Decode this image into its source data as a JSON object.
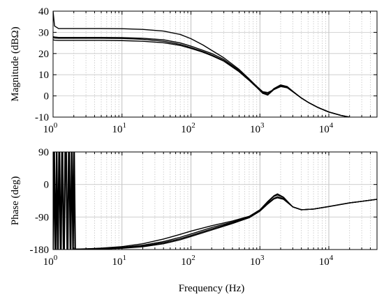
{
  "chart_data": [
    {
      "type": "line",
      "panel": "magnitude",
      "xlabel": "",
      "ylabel": "Magnitude (dBΩ)",
      "xscale": "log",
      "xlim": [
        1,
        50000
      ],
      "ylim": [
        -10,
        40
      ],
      "yticks": [
        -10,
        0,
        10,
        20,
        30,
        40
      ],
      "ytick_labels": [
        "-10",
        "0",
        "10",
        "20",
        "30",
        "40"
      ],
      "xtick_labels": [
        {
          "base": "10",
          "exp": "0"
        },
        {
          "base": "10",
          "exp": "1"
        },
        {
          "base": "10",
          "exp": "2"
        },
        {
          "base": "10",
          "exp": "3"
        },
        {
          "base": "10",
          "exp": "4"
        }
      ],
      "grid": true,
      "series": [
        {
          "x": [
            1,
            1.05,
            1.2,
            2,
            5,
            10,
            20,
            40,
            70,
            100,
            150,
            200,
            300,
            500,
            700,
            900,
            1100,
            1300,
            1600,
            2000,
            2500,
            3000,
            4000,
            5000,
            7000,
            10000,
            15000,
            20000
          ],
          "values": [
            40,
            33,
            31.8,
            31.8,
            31.8,
            31.7,
            31.4,
            30.6,
            29,
            27,
            24,
            21.5,
            18,
            12.5,
            8,
            4.5,
            2.0,
            1.6,
            3.0,
            4.5,
            3.8,
            2.0,
            -1.0,
            -3.0,
            -5.5,
            -7.6,
            -9.2,
            -10.0
          ]
        },
        {
          "x": [
            1,
            1.05,
            1.2,
            2,
            5,
            10,
            20,
            40,
            70,
            100,
            150,
            200,
            300,
            500,
            700,
            900,
            1100,
            1300,
            1600,
            2000,
            2500,
            3000,
            4000,
            5000,
            7000,
            10000,
            15000,
            20000
          ],
          "values": [
            28,
            27.8,
            27.6,
            27.6,
            27.6,
            27.5,
            27.2,
            26.5,
            25,
            23.5,
            21.5,
            20,
            17.2,
            12,
            7.8,
            4.5,
            1.8,
            1.0,
            3.2,
            4.8,
            4.2,
            2.2,
            -1.0,
            -3.0,
            -5.5,
            -7.6,
            -9.2,
            -10.0
          ]
        },
        {
          "x": [
            1,
            1.05,
            1.2,
            2,
            5,
            10,
            20,
            40,
            70,
            100,
            150,
            200,
            300,
            500,
            700,
            900,
            1100,
            1300,
            1600,
            2000,
            2500,
            3000,
            4000,
            5000,
            7000,
            10000,
            15000,
            20000
          ],
          "values": [
            27.5,
            27.3,
            27.2,
            27.2,
            27.2,
            27.1,
            26.7,
            25.8,
            24.3,
            22.8,
            20.9,
            19.3,
            16.6,
            11.6,
            7.5,
            4.2,
            1.4,
            0.7,
            3.5,
            5.2,
            4.4,
            2.2,
            -1.0,
            -3.0,
            -5.5,
            -7.6,
            -9.2,
            -10.0
          ]
        },
        {
          "x": [
            1,
            1.05,
            1.2,
            2,
            5,
            10,
            20,
            40,
            70,
            100,
            150,
            200,
            300,
            500,
            700,
            900,
            1100,
            1300,
            1600,
            2000,
            2500,
            3000,
            4000,
            5000,
            7000,
            10000,
            15000,
            20000
          ],
          "values": [
            26.5,
            26.3,
            26.2,
            26.2,
            26.2,
            26.1,
            25.8,
            25.1,
            23.8,
            22.4,
            20.6,
            19,
            16.4,
            11.4,
            7.3,
            4.0,
            1.2,
            0.4,
            3.0,
            4.4,
            3.9,
            2.0,
            -1.0,
            -3.0,
            -5.5,
            -7.6,
            -9.2,
            -10.0
          ]
        }
      ]
    },
    {
      "type": "line",
      "panel": "phase",
      "xlabel": "Frequency (Hz)",
      "ylabel": "Phase (deg)",
      "xscale": "log",
      "xlim": [
        1,
        50000
      ],
      "ylim": [
        -180,
        90
      ],
      "yticks": [
        -180,
        -90,
        0,
        90
      ],
      "ytick_labels": [
        "-180",
        "-90",
        "0",
        "90"
      ],
      "xtick_labels": [
        {
          "base": "10",
          "exp": "0"
        },
        {
          "base": "10",
          "exp": "1"
        },
        {
          "base": "10",
          "exp": "2"
        },
        {
          "base": "10",
          "exp": "3"
        },
        {
          "base": "10",
          "exp": "4"
        }
      ],
      "grid": true,
      "noise_band": {
        "x_start": 1,
        "x_end": 2.05,
        "values": [
          -180,
          90
        ]
      },
      "series": [
        {
          "x": [
            2,
            3,
            5,
            10,
            20,
            40,
            70,
            100,
            200,
            400,
            700,
            1000,
            1300,
            1600,
            1800,
            2200,
            3000,
            4000,
            6000,
            10000,
            20000,
            50000
          ],
          "values": [
            -179,
            -178,
            -176,
            -172,
            -164,
            -151,
            -138,
            -129,
            -114,
            -101,
            -88,
            -70,
            -47,
            -31,
            -26,
            -35,
            -62,
            -70,
            -68,
            -61,
            -51,
            -41
          ]
        },
        {
          "x": [
            2,
            3,
            5,
            10,
            20,
            40,
            70,
            100,
            200,
            400,
            700,
            1000,
            1300,
            1600,
            1800,
            2200,
            3000,
            4000,
            6000,
            10000,
            20000,
            50000
          ],
          "values": [
            -179,
            -178.5,
            -177,
            -174,
            -168,
            -158,
            -146,
            -137,
            -119,
            -104,
            -90,
            -72,
            -49,
            -33,
            -29,
            -36,
            -62,
            -70,
            -68,
            -61,
            -51,
            -41
          ]
        },
        {
          "x": [
            2,
            3,
            5,
            10,
            20,
            40,
            70,
            100,
            200,
            400,
            700,
            1000,
            1300,
            1600,
            1800,
            2200,
            3000,
            4000,
            6000,
            10000,
            20000,
            50000
          ],
          "values": [
            -179.5,
            -179,
            -178,
            -175.5,
            -170.5,
            -161,
            -150,
            -141,
            -123,
            -106,
            -91,
            -73,
            -52,
            -38,
            -34,
            -39,
            -62,
            -70,
            -68,
            -61,
            -51,
            -41
          ]
        },
        {
          "x": [
            2,
            3,
            5,
            10,
            20,
            40,
            70,
            100,
            200,
            400,
            700,
            1000,
            1300,
            1600,
            1800,
            2200,
            3000,
            4000,
            6000,
            10000,
            20000,
            50000
          ],
          "values": [
            -179.5,
            -179,
            -178.5,
            -176.5,
            -172.5,
            -164,
            -153,
            -144,
            -126,
            -108,
            -92,
            -74,
            -54,
            -40,
            -37,
            -41,
            -62,
            -70,
            -68,
            -61,
            -51,
            -41
          ]
        }
      ]
    }
  ]
}
